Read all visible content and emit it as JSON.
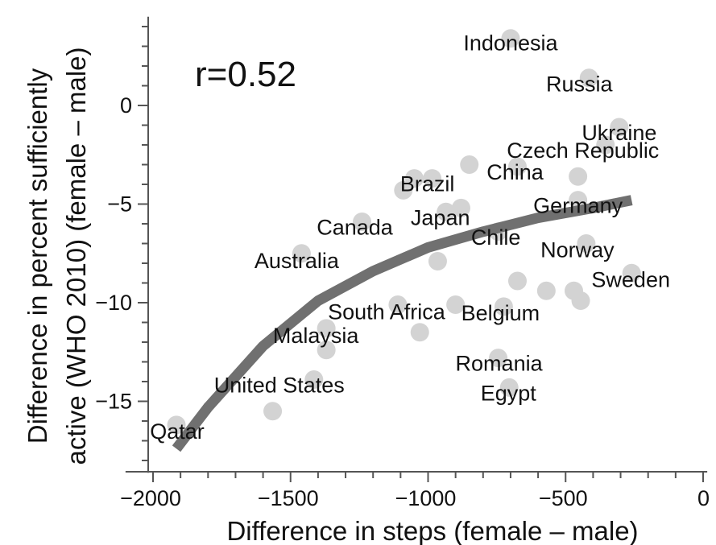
{
  "chart_data": {
    "type": "scatter",
    "title": "",
    "xlabel": "Difference in steps (female – male)",
    "ylabel_lines": [
      "Difference in percent sufficiently",
      "active (WHO 2010) (female – male)"
    ],
    "annotation": "r=0.52",
    "xlim": [
      -2100,
      15
    ],
    "ylim": [
      -18.5,
      4.5
    ],
    "x_ticks": [
      -2000,
      -1500,
      -1000,
      -500,
      0
    ],
    "x_tick_labels": [
      "−2000",
      "−1500",
      "−1000",
      "−500",
      "0"
    ],
    "y_ticks": [
      0,
      -5,
      -10,
      -15
    ],
    "y_tick_labels": [
      "0",
      "−5",
      "−10",
      "−15"
    ],
    "grid": false,
    "colors": {
      "points": "#d3d3d3",
      "trend": "#707070",
      "axis": "#555555"
    },
    "labeled_points": [
      {
        "label": "Indonesia",
        "x": -700,
        "y": 3.4
      },
      {
        "label": "Russia",
        "x": -415,
        "y": 1.4
      },
      {
        "label": "Ukraine",
        "x": -305,
        "y": -1.1
      },
      {
        "label": "Czech Republic",
        "x": -355,
        "y": -2.0
      },
      {
        "label": "China",
        "x": -675,
        "y": -3.1
      },
      {
        "label": "Brazil",
        "x": -985,
        "y": -3.7
      },
      {
        "label": "Germany",
        "x": -455,
        "y": -4.8
      },
      {
        "label": "Japan",
        "x": -935,
        "y": -5.4
      },
      {
        "label": "Canada",
        "x": -1240,
        "y": -5.9
      },
      {
        "label": "Norway",
        "x": -425,
        "y": -7.0
      },
      {
        "label": "Chile",
        "x": -745,
        "y": -6.4
      },
      {
        "label": "Australia",
        "x": -1460,
        "y": -7.5
      },
      {
        "label": "Sweden",
        "x": -260,
        "y": -8.5
      },
      {
        "label": "South Africa",
        "x": -1110,
        "y": -10.1
      },
      {
        "label": "Belgium",
        "x": -725,
        "y": -10.2
      },
      {
        "label": "Malaysia",
        "x": -1370,
        "y": -11.3
      },
      {
        "label": "Romania",
        "x": -745,
        "y": -12.8
      },
      {
        "label": "Egypt",
        "x": -705,
        "y": -14.3
      },
      {
        "label": "United States",
        "x": -1415,
        "y": -13.9
      },
      {
        "label": "Qatar",
        "x": -1915,
        "y": -16.2
      }
    ],
    "unlabeled_points": [
      {
        "x": -850,
        "y": -3.0
      },
      {
        "x": -880,
        "y": -5.2
      },
      {
        "x": -1090,
        "y": -4.3
      },
      {
        "x": -1050,
        "y": -3.7
      },
      {
        "x": -455,
        "y": -3.6
      },
      {
        "x": -965,
        "y": -7.9
      },
      {
        "x": -675,
        "y": -8.9
      },
      {
        "x": -570,
        "y": -9.4
      },
      {
        "x": -470,
        "y": -9.4
      },
      {
        "x": -445,
        "y": -9.9
      },
      {
        "x": -900,
        "y": -10.1
      },
      {
        "x": -1030,
        "y": -11.5
      },
      {
        "x": -1370,
        "y": -12.4
      },
      {
        "x": -1565,
        "y": -15.5
      }
    ],
    "trend_line": [
      {
        "x": -1915,
        "y": -17.4
      },
      {
        "x": -1800,
        "y": -15.3
      },
      {
        "x": -1600,
        "y": -12.2
      },
      {
        "x": -1400,
        "y": -9.9
      },
      {
        "x": -1200,
        "y": -8.4
      },
      {
        "x": -1000,
        "y": -7.2
      },
      {
        "x": -800,
        "y": -6.4
      },
      {
        "x": -600,
        "y": -5.7
      },
      {
        "x": -400,
        "y": -5.2
      },
      {
        "x": -260,
        "y": -4.8
      }
    ]
  }
}
